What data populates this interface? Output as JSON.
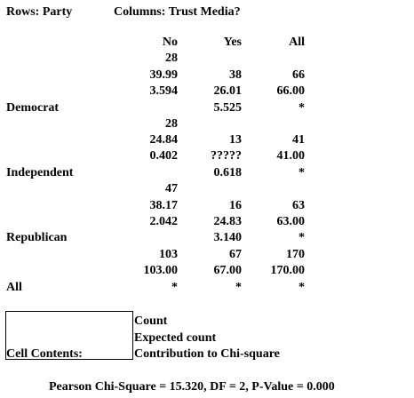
{
  "header": {
    "rows_label": "Rows: Party",
    "columns_label": "Columns: Trust Media?"
  },
  "columns": [
    "No",
    "Yes",
    "All"
  ],
  "rows": [
    {
      "label": "Democrat",
      "no": {
        "count": "28",
        "expected": "39.99",
        "chisq": "3.594"
      },
      "yes": {
        "count": "38",
        "expected": "26.01",
        "chisq": "5.525"
      },
      "all": {
        "count": "66",
        "expected": "66.00",
        "chisq": "*"
      }
    },
    {
      "label": "Independent",
      "no": {
        "count": "28",
        "expected": "24.84",
        "chisq": "0.402"
      },
      "yes": {
        "count": "13",
        "expected": "?????",
        "chisq": "0.618"
      },
      "all": {
        "count": "41",
        "expected": "41.00",
        "chisq": "*"
      }
    },
    {
      "label": "Republican",
      "no": {
        "count": "47",
        "expected": "38.17",
        "chisq": "2.042"
      },
      "yes": {
        "count": "16",
        "expected": "24.83",
        "chisq": "3.140"
      },
      "all": {
        "count": "63",
        "expected": "63.00",
        "chisq": "*"
      }
    },
    {
      "label": "All",
      "no": {
        "count": "103",
        "expected": "103.00",
        "chisq": "*"
      },
      "yes": {
        "count": "67",
        "expected": "67.00",
        "chisq": "*"
      },
      "all": {
        "count": "170",
        "expected": "170.00",
        "chisq": "*"
      }
    }
  ],
  "legend": {
    "title": "Cell Contents:",
    "items": [
      "Count",
      "Expected count",
      "Contribution to Chi-square"
    ]
  },
  "footer": {
    "summary": "Pearson Chi-Square = 15.320, DF = 2, P-Value = 0.000"
  }
}
